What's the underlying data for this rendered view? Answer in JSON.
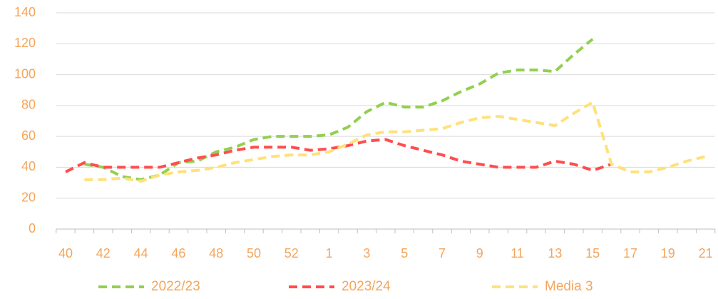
{
  "chart_data": {
    "type": "line",
    "categories": [
      40,
      null,
      42,
      null,
      44,
      null,
      46,
      null,
      48,
      null,
      50,
      null,
      52,
      null,
      1,
      null,
      3,
      null,
      5,
      null,
      7,
      null,
      9,
      null,
      11,
      null,
      13,
      null,
      15,
      null,
      17,
      null,
      19,
      null,
      21
    ],
    "series": [
      {
        "name": "2022/23",
        "color": "#92d050",
        "values": [
          null,
          42,
          40,
          34,
          32,
          35,
          43,
          44,
          50,
          53,
          58,
          60,
          60,
          60,
          61,
          66,
          76,
          82,
          79,
          79,
          83,
          89,
          94,
          101,
          103,
          103,
          102,
          113,
          123,
          null,
          null,
          null,
          null,
          null,
          null
        ]
      },
      {
        "name": "2023/24",
        "color": "#ff4d4d",
        "values": [
          37,
          43,
          40,
          40,
          40,
          40,
          43,
          46,
          48,
          51,
          53,
          53,
          53,
          51,
          52,
          54,
          57,
          58,
          54,
          51,
          48,
          44,
          42,
          40,
          40,
          40,
          44,
          42,
          38,
          42,
          null,
          null,
          null,
          null,
          null
        ]
      },
      {
        "name": "Media 3",
        "color": "#ffe17a",
        "values": [
          null,
          32,
          32,
          33,
          31,
          35,
          37,
          38,
          40,
          43,
          45,
          47,
          48,
          48,
          50,
          55,
          61,
          63,
          63,
          64,
          65,
          69,
          72,
          73,
          71,
          69,
          67,
          75,
          82,
          42,
          37,
          37,
          40,
          44,
          47
        ]
      }
    ],
    "ylim": [
      0,
      140
    ],
    "yticks": [
      0,
      20,
      40,
      60,
      80,
      100,
      120,
      140
    ],
    "grid": true,
    "legend": "bottom"
  }
}
